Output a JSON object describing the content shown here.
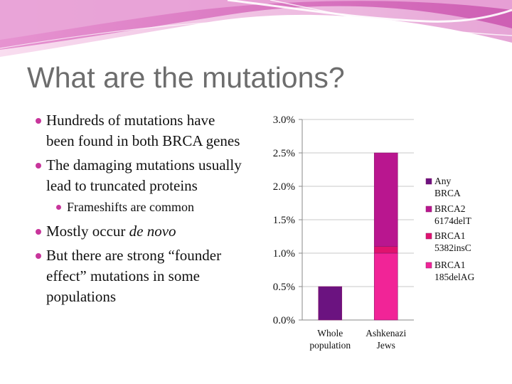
{
  "slide": {
    "title": "What are the mutations?",
    "bullets": [
      {
        "level": 1,
        "text": "Hundreds of mutations have been found in both BRCA genes"
      },
      {
        "level": 1,
        "text": "The damaging mutations usually lead to truncated proteins"
      },
      {
        "level": 2,
        "text": "Frameshifts are common"
      },
      {
        "level": 1,
        "text_before": "Mostly occur ",
        "text_italic": "de novo"
      },
      {
        "level": 1,
        "text": "But there are strong “founder effect” mutations in some populations"
      }
    ],
    "colors": {
      "title": "#6d6d6d",
      "bullet": "#c8359b",
      "accent": "#d64fb5"
    }
  },
  "chart_data": {
    "type": "bar",
    "stacked": true,
    "categories": [
      "Whole population",
      "Ashkenazi Jews"
    ],
    "series": [
      {
        "name": "BRCA1 185delAG",
        "values": [
          0,
          1.0
        ],
        "color": "#f12497"
      },
      {
        "name": "BRCA1 5382insC",
        "values": [
          0,
          0.1
        ],
        "color": "#e0136e"
      },
      {
        "name": "BRCA2 6174delT",
        "values": [
          0,
          1.4
        ],
        "color": "#b9168f"
      },
      {
        "name": "Any BRCA",
        "values": [
          0.5,
          0
        ],
        "color": "#6b1380"
      }
    ],
    "legend_order": [
      "Any BRCA",
      "BRCA2 6174delT",
      "BRCA1 5382insC",
      "BRCA1 185delAG"
    ],
    "y_ticks": [
      "0.0%",
      "0.5%",
      "1.0%",
      "1.5%",
      "2.0%",
      "2.5%",
      "3.0%"
    ],
    "ylim": [
      0,
      3.0
    ],
    "title": "",
    "xlabel": "",
    "ylabel": "",
    "grid": true,
    "legend_position": "right"
  }
}
